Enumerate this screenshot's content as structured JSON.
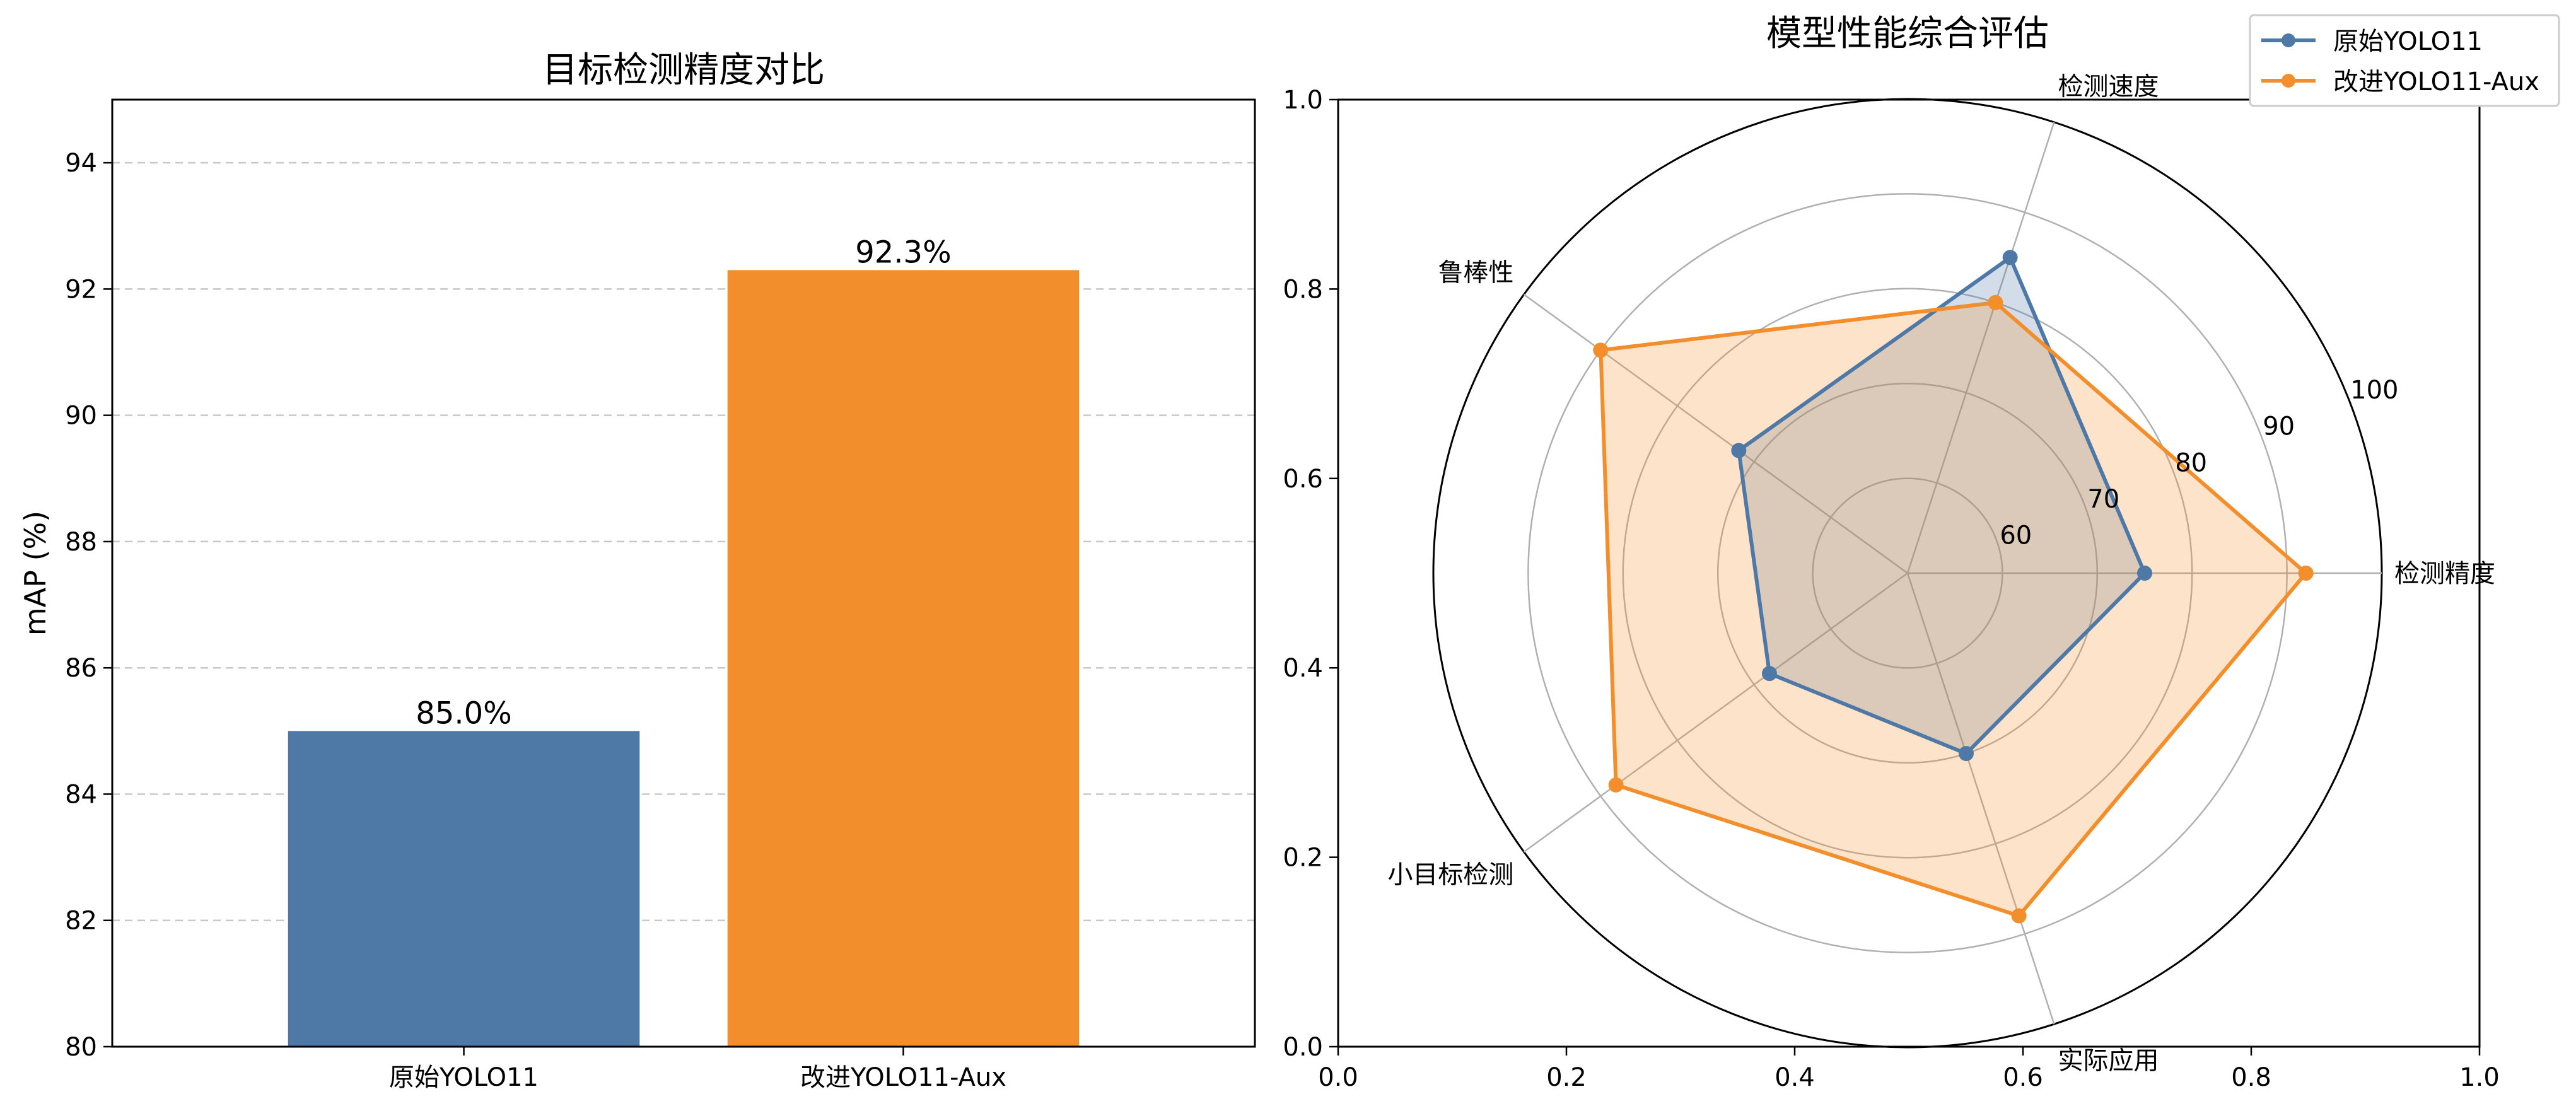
{
  "colors": {
    "baseline": "#4e79a7",
    "improved": "#f28e2b",
    "grid": "#c8c8c8",
    "polar_grid": "#b0b0b0"
  },
  "chart_data": [
    {
      "type": "bar",
      "title": "目标检测精度对比",
      "xlabel": "",
      "ylabel": "mAP (%)",
      "ylim": [
        80,
        95
      ],
      "yticks": [
        80,
        82,
        84,
        86,
        88,
        90,
        92,
        94
      ],
      "grid": "y-dashed",
      "categories": [
        "原始YOLO11",
        "改进YOLO11-Aux"
      ],
      "values": [
        85.0,
        92.3
      ],
      "value_labels": [
        "85.0%",
        "92.3%"
      ]
    },
    {
      "type": "radar",
      "title": "模型性能综合评估",
      "axes": [
        "检测精度",
        "检测速度",
        "鲁棒性",
        "小目标检测",
        "实际应用"
      ],
      "rlim": [
        50,
        100
      ],
      "rticks": [
        60,
        70,
        80,
        90,
        100
      ],
      "frame_ticks": {
        "x": [
          "0.0",
          "0.2",
          "0.4",
          "0.6",
          "0.8",
          "1.0"
        ],
        "y": [
          "0.0",
          "0.2",
          "0.4",
          "0.6",
          "0.8",
          "1.0"
        ]
      },
      "legend_position": "top-right",
      "series": [
        {
          "name": "原始YOLO11",
          "values": [
            75,
            85,
            72,
            68,
            70
          ]
        },
        {
          "name": "改进YOLO11-Aux",
          "values": [
            92,
            80,
            90,
            88,
            88
          ]
        }
      ]
    }
  ]
}
